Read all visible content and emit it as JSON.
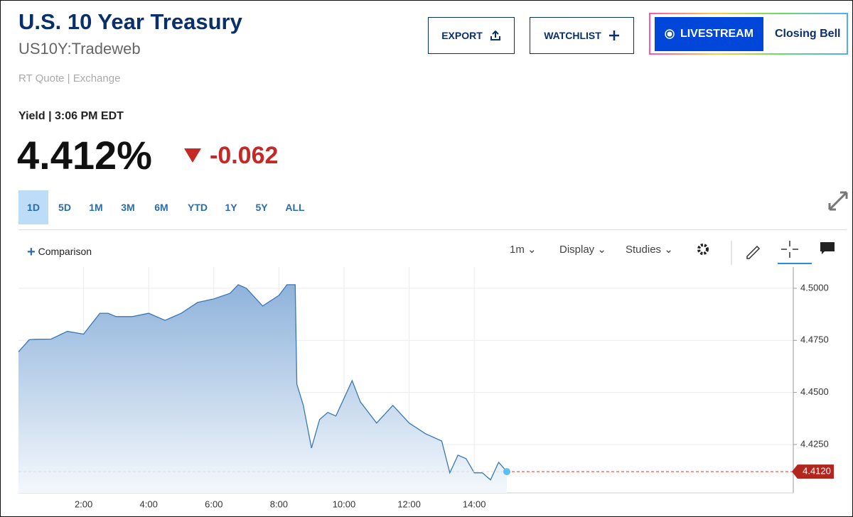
{
  "header": {
    "title": "U.S. 10 Year Treasury",
    "symbol": "US10Y:Tradeweb",
    "quote_type": "RT Quote | Exchange",
    "yield_time": "Yield | 3:06 PM EDT",
    "price": "4.412%",
    "change": "-0.062"
  },
  "buttons": {
    "export": "EXPORT",
    "watchlist": "WATCHLIST",
    "livestream": "LIVESTREAM",
    "show": "Closing Bell"
  },
  "ranges": [
    "1D",
    "5D",
    "1M",
    "3M",
    "6M",
    "YTD",
    "1Y",
    "5Y",
    "ALL"
  ],
  "toolbar": {
    "comparison": "Comparison",
    "interval": "1m",
    "display": "Display",
    "studies": "Studies"
  },
  "chart_data": {
    "type": "line",
    "x": [
      0,
      0.33,
      0.5,
      1,
      1.5,
      2,
      2.25,
      2.5,
      2.75,
      3,
      3.5,
      4,
      4.5,
      4.75,
      5,
      5.5,
      6,
      6.5,
      6.75,
      7,
      7.5,
      8,
      8.25,
      8.5,
      8.55,
      8.75,
      9,
      9.25,
      9.5,
      9.75,
      10,
      10.25,
      10.5,
      11,
      11.5,
      12,
      12.5,
      13,
      13.25,
      13.5,
      13.75,
      14,
      14.25,
      14.5,
      14.75,
      15
    ],
    "series": [
      {
        "name": "US10Y",
        "color": "#3a78b5",
        "values": [
          4.4695,
          4.4753,
          4.4755,
          4.4756,
          4.4793,
          4.478,
          4.483,
          4.488,
          4.488,
          4.4864,
          4.4864,
          4.488,
          4.4846,
          4.4863,
          4.488,
          4.4932,
          4.4949,
          4.4976,
          4.5017,
          4.5,
          4.4915,
          4.4966,
          4.5017,
          4.5017,
          4.454,
          4.4438,
          4.4233,
          4.437,
          4.4404,
          4.4387,
          4.4472,
          4.4557,
          4.4455,
          4.4353,
          4.4438,
          4.4353,
          4.4302,
          4.4267,
          4.4114,
          4.4199,
          4.4182,
          4.4114,
          4.4114,
          4.408,
          4.4165,
          4.412
        ],
        "last_label": "4.4120"
      }
    ],
    "xlim": [
      0,
      23.8
    ],
    "ylim": [
      4.4018,
      4.5102
    ],
    "xticks": [
      {
        "value": 2,
        "label": "2:00"
      },
      {
        "value": 4,
        "label": "4:00"
      },
      {
        "value": 6,
        "label": "6:00"
      },
      {
        "value": 8,
        "label": "8:00"
      },
      {
        "value": 10,
        "label": "10:00"
      },
      {
        "value": 12,
        "label": "12:00"
      },
      {
        "value": 14,
        "label": "14:00"
      }
    ],
    "yticks": [
      {
        "value": 4.425,
        "label": "4.4250"
      },
      {
        "value": 4.45,
        "label": "4.4500"
      },
      {
        "value": 4.475,
        "label": "4.4750"
      },
      {
        "value": 4.5,
        "label": "4.5000"
      }
    ],
    "grid": true
  }
}
